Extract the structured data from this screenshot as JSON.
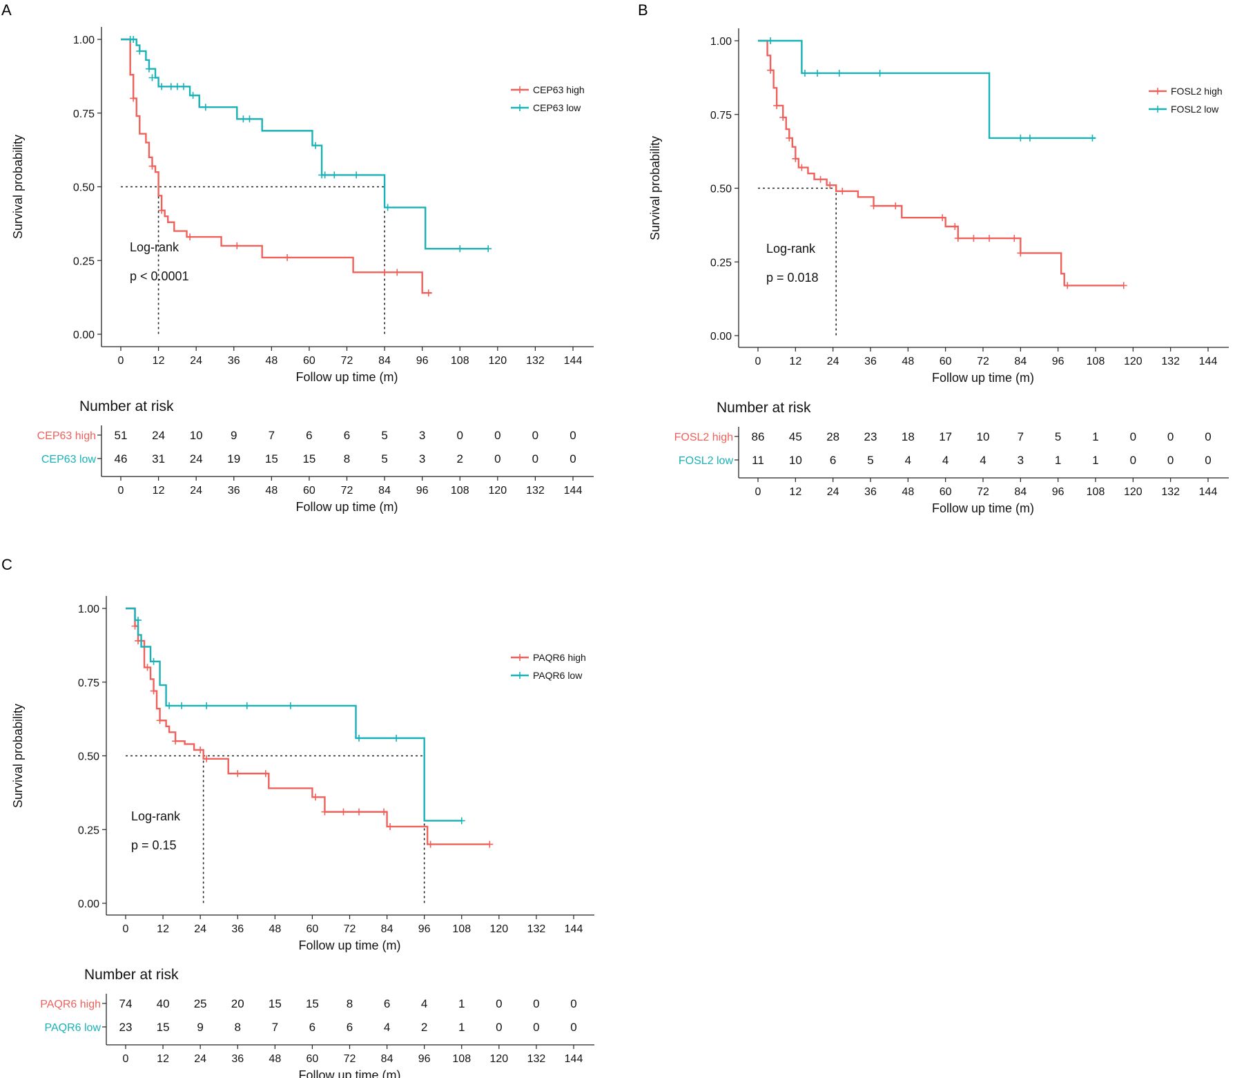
{
  "chart_data": [
    {
      "type": "line",
      "subtype": "kaplan-meier",
      "panel": "A",
      "title": "",
      "xlabel": "Follow up time (m)",
      "ylabel": "Survival probability",
      "xlim": [
        0,
        144
      ],
      "ylim": [
        0,
        1
      ],
      "x_ticks": [
        "0",
        "12",
        "24",
        "36",
        "48",
        "60",
        "72",
        "84",
        "96",
        "108",
        "120",
        "132",
        "144"
      ],
      "y_ticks": [
        "0.00",
        "0.25",
        "0.50",
        "0.75",
        "1.00"
      ],
      "legend_position": "right",
      "annotation": [
        "Log-rank",
        "p < 0.0001"
      ],
      "median_lines": [
        12,
        84
      ],
      "series": [
        {
          "name": "CEP63 high",
          "color": "#F0605A",
          "steps": [
            [
              0,
              1.0
            ],
            [
              3,
              0.88
            ],
            [
              4,
              0.8
            ],
            [
              5,
              0.74
            ],
            [
              6,
              0.68
            ],
            [
              8,
              0.65
            ],
            [
              9,
              0.6
            ],
            [
              10,
              0.57
            ],
            [
              11,
              0.55
            ],
            [
              12,
              0.47
            ],
            [
              13,
              0.42
            ],
            [
              14,
              0.4
            ],
            [
              15,
              0.38
            ],
            [
              17,
              0.35
            ],
            [
              21,
              0.33
            ],
            [
              32,
              0.3
            ],
            [
              45,
              0.26
            ],
            [
              74,
              0.21
            ],
            [
              96,
              0.14
            ],
            [
              99,
              0.14
            ]
          ],
          "censors": [
            [
              4,
              0.8
            ],
            [
              10,
              0.57
            ],
            [
              13,
              0.42
            ],
            [
              22,
              0.33
            ],
            [
              37,
              0.3
            ],
            [
              53,
              0.26
            ],
            [
              84,
              0.21
            ],
            [
              88,
              0.21
            ],
            [
              98,
              0.14
            ]
          ]
        },
        {
          "name": "CEP63 low",
          "color": "#17B2B8",
          "steps": [
            [
              0,
              1.0
            ],
            [
              5,
              0.98
            ],
            [
              6,
              0.96
            ],
            [
              8,
              0.93
            ],
            [
              9,
              0.9
            ],
            [
              11,
              0.87
            ],
            [
              12,
              0.84
            ],
            [
              22,
              0.81
            ],
            [
              25,
              0.77
            ],
            [
              37,
              0.73
            ],
            [
              45,
              0.69
            ],
            [
              61,
              0.64
            ],
            [
              64,
              0.54
            ],
            [
              84,
              0.43
            ],
            [
              97,
              0.29
            ],
            [
              117,
              0.29
            ]
          ],
          "censors": [
            [
              3,
              1.0
            ],
            [
              4,
              1.0
            ],
            [
              6,
              0.96
            ],
            [
              9,
              0.9
            ],
            [
              10,
              0.87
            ],
            [
              13,
              0.84
            ],
            [
              16,
              0.84
            ],
            [
              18,
              0.84
            ],
            [
              20,
              0.84
            ],
            [
              23,
              0.81
            ],
            [
              27,
              0.77
            ],
            [
              39,
              0.73
            ],
            [
              41,
              0.73
            ],
            [
              62,
              0.64
            ],
            [
              64,
              0.54
            ],
            [
              65,
              0.54
            ],
            [
              68,
              0.54
            ],
            [
              75,
              0.54
            ],
            [
              85,
              0.43
            ],
            [
              108,
              0.29
            ],
            [
              117,
              0.29
            ]
          ]
        }
      ],
      "risk_table": {
        "title": "Number at risk",
        "rows": [
          {
            "label": "CEP63 high",
            "color": "#F0605A",
            "values": [
              "51",
              "24",
              "10",
              "9",
              "7",
              "6",
              "6",
              "5",
              "3",
              "0",
              "0",
              "0",
              "0"
            ]
          },
          {
            "label": "CEP63 low",
            "color": "#17B2B8",
            "values": [
              "46",
              "31",
              "24",
              "19",
              "15",
              "15",
              "8",
              "5",
              "3",
              "2",
              "0",
              "0",
              "0"
            ]
          }
        ]
      }
    },
    {
      "type": "line",
      "subtype": "kaplan-meier",
      "panel": "B",
      "title": "",
      "xlabel": "Follow up time (m)",
      "ylabel": "Survival probability",
      "xlim": [
        0,
        144
      ],
      "ylim": [
        0,
        1
      ],
      "x_ticks": [
        "0",
        "12",
        "24",
        "36",
        "48",
        "60",
        "72",
        "84",
        "96",
        "108",
        "120",
        "132",
        "144"
      ],
      "y_ticks": [
        "0.00",
        "0.25",
        "0.50",
        "0.75",
        "1.00"
      ],
      "legend_position": "right",
      "annotation": [
        "Log-rank",
        "p = 0.018"
      ],
      "median_lines": [
        25
      ],
      "series": [
        {
          "name": "FOSL2 high",
          "color": "#F0605A",
          "steps": [
            [
              0,
              1.0
            ],
            [
              3,
              0.95
            ],
            [
              4,
              0.9
            ],
            [
              5,
              0.84
            ],
            [
              6,
              0.78
            ],
            [
              8,
              0.74
            ],
            [
              9,
              0.7
            ],
            [
              10,
              0.67
            ],
            [
              11,
              0.64
            ],
            [
              12,
              0.6
            ],
            [
              13,
              0.57
            ],
            [
              16,
              0.55
            ],
            [
              18,
              0.53
            ],
            [
              22,
              0.51
            ],
            [
              25,
              0.49
            ],
            [
              32,
              0.47
            ],
            [
              37,
              0.44
            ],
            [
              46,
              0.4
            ],
            [
              60,
              0.37
            ],
            [
              64,
              0.33
            ],
            [
              84,
              0.28
            ],
            [
              97,
              0.21
            ],
            [
              98,
              0.17
            ],
            [
              117,
              0.17
            ]
          ],
          "censors": [
            [
              4,
              0.9
            ],
            [
              6,
              0.78
            ],
            [
              8,
              0.74
            ],
            [
              10,
              0.67
            ],
            [
              12,
              0.6
            ],
            [
              14,
              0.57
            ],
            [
              20,
              0.53
            ],
            [
              23,
              0.51
            ],
            [
              27,
              0.49
            ],
            [
              37,
              0.44
            ],
            [
              44,
              0.44
            ],
            [
              59,
              0.4
            ],
            [
              63,
              0.37
            ],
            [
              64,
              0.33
            ],
            [
              69,
              0.33
            ],
            [
              74,
              0.33
            ],
            [
              82,
              0.33
            ],
            [
              84,
              0.28
            ],
            [
              99,
              0.17
            ],
            [
              117,
              0.17
            ]
          ]
        },
        {
          "name": "FOSL2 low",
          "color": "#17B2B8",
          "steps": [
            [
              0,
              1.0
            ],
            [
              14,
              0.89
            ],
            [
              74,
              0.67
            ],
            [
              108,
              0.67
            ]
          ],
          "censors": [
            [
              4,
              1.0
            ],
            [
              15,
              0.89
            ],
            [
              19,
              0.89
            ],
            [
              26,
              0.89
            ],
            [
              39,
              0.89
            ],
            [
              84,
              0.67
            ],
            [
              87,
              0.67
            ],
            [
              107,
              0.67
            ]
          ]
        }
      ],
      "risk_table": {
        "title": "Number at risk",
        "rows": [
          {
            "label": "FOSL2 high",
            "color": "#F0605A",
            "values": [
              "86",
              "45",
              "28",
              "23",
              "18",
              "17",
              "10",
              "7",
              "5",
              "1",
              "0",
              "0",
              "0"
            ]
          },
          {
            "label": "FOSL2 low",
            "color": "#17B2B8",
            "values": [
              "11",
              "10",
              "6",
              "5",
              "4",
              "4",
              "4",
              "3",
              "1",
              "1",
              "0",
              "0",
              "0"
            ]
          }
        ]
      }
    },
    {
      "type": "line",
      "subtype": "kaplan-meier",
      "panel": "C",
      "title": "",
      "xlabel": "Follow up time (m)",
      "ylabel": "Survival probability",
      "xlim": [
        0,
        144
      ],
      "ylim": [
        0,
        1
      ],
      "x_ticks": [
        "0",
        "12",
        "24",
        "36",
        "48",
        "60",
        "72",
        "84",
        "96",
        "108",
        "120",
        "132",
        "144"
      ],
      "y_ticks": [
        "0.00",
        "0.25",
        "0.50",
        "0.75",
        "1.00"
      ],
      "legend_position": "right",
      "annotation": [
        "Log-rank",
        "p = 0.15"
      ],
      "median_lines": [
        25,
        96
      ],
      "series": [
        {
          "name": "PAQR6 high",
          "color": "#F0605A",
          "steps": [
            [
              0,
              1.0
            ],
            [
              3,
              0.94
            ],
            [
              4,
              0.89
            ],
            [
              6,
              0.8
            ],
            [
              8,
              0.76
            ],
            [
              9,
              0.72
            ],
            [
              10,
              0.66
            ],
            [
              11,
              0.62
            ],
            [
              13,
              0.6
            ],
            [
              14,
              0.58
            ],
            [
              16,
              0.55
            ],
            [
              19,
              0.54
            ],
            [
              22,
              0.52
            ],
            [
              25,
              0.49
            ],
            [
              33,
              0.44
            ],
            [
              46,
              0.39
            ],
            [
              60,
              0.36
            ],
            [
              64,
              0.31
            ],
            [
              84,
              0.26
            ],
            [
              97,
              0.2
            ],
            [
              117,
              0.2
            ]
          ],
          "censors": [
            [
              3,
              0.94
            ],
            [
              4,
              0.89
            ],
            [
              7,
              0.8
            ],
            [
              9,
              0.72
            ],
            [
              11,
              0.62
            ],
            [
              16,
              0.55
            ],
            [
              24,
              0.52
            ],
            [
              26,
              0.49
            ],
            [
              36,
              0.44
            ],
            [
              45,
              0.44
            ],
            [
              61,
              0.36
            ],
            [
              64,
              0.31
            ],
            [
              70,
              0.31
            ],
            [
              75,
              0.31
            ],
            [
              83,
              0.31
            ],
            [
              85,
              0.26
            ],
            [
              98,
              0.2
            ],
            [
              117,
              0.2
            ]
          ]
        },
        {
          "name": "PAQR6 low",
          "color": "#17B2B8",
          "steps": [
            [
              0,
              1.0
            ],
            [
              3,
              0.96
            ],
            [
              4,
              0.91
            ],
            [
              5,
              0.87
            ],
            [
              8,
              0.82
            ],
            [
              11,
              0.74
            ],
            [
              13,
              0.67
            ],
            [
              74,
              0.56
            ],
            [
              96,
              0.28
            ],
            [
              108,
              0.28
            ]
          ],
          "censors": [
            [
              4,
              0.96
            ],
            [
              9,
              0.82
            ],
            [
              14,
              0.67
            ],
            [
              18,
              0.67
            ],
            [
              26,
              0.67
            ],
            [
              39,
              0.67
            ],
            [
              53,
              0.67
            ],
            [
              75,
              0.56
            ],
            [
              87,
              0.56
            ],
            [
              108,
              0.28
            ]
          ]
        }
      ],
      "risk_table": {
        "title": "Number at risk",
        "rows": [
          {
            "label": "PAQR6 high",
            "color": "#F0605A",
            "values": [
              "74",
              "40",
              "25",
              "20",
              "15",
              "15",
              "8",
              "6",
              "4",
              "1",
              "0",
              "0",
              "0"
            ]
          },
          {
            "label": "PAQR6 low",
            "color": "#17B2B8",
            "values": [
              "23",
              "15",
              "9",
              "8",
              "7",
              "6",
              "6",
              "4",
              "2",
              "1",
              "0",
              "0",
              "0"
            ]
          }
        ]
      }
    }
  ]
}
